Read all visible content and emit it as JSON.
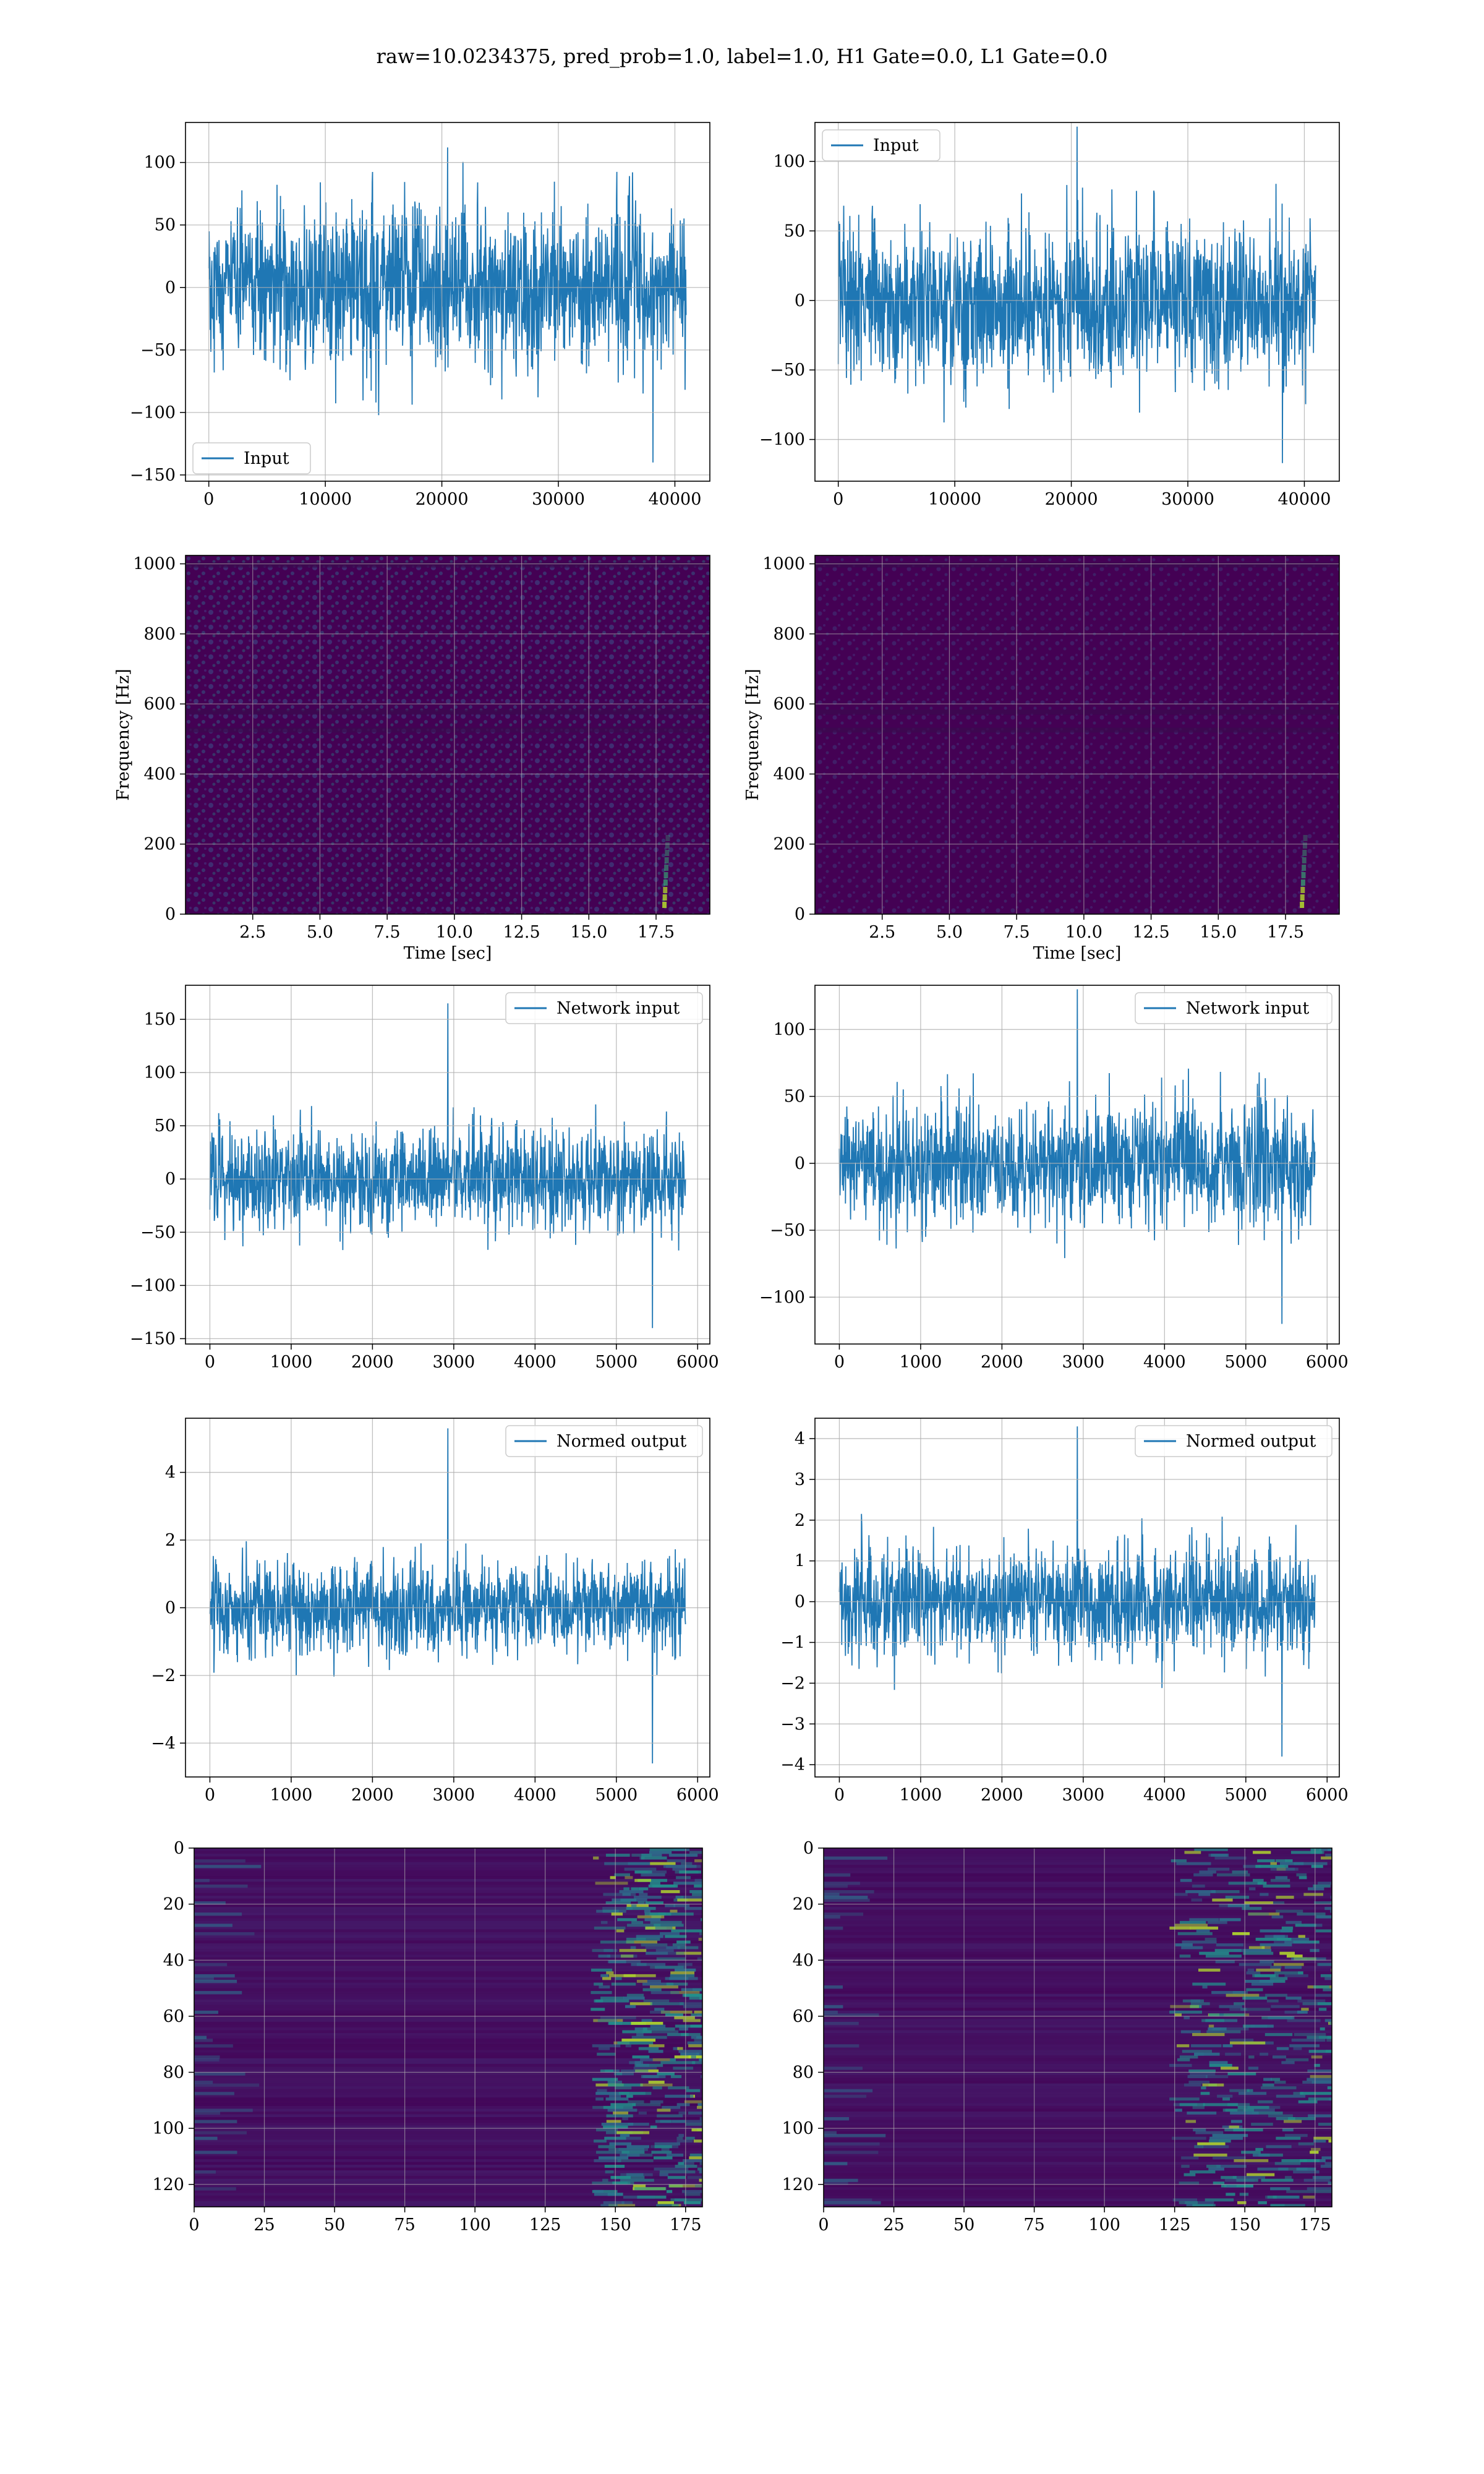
{
  "title": "raw=10.0234375, pred_prob=1.0, label=1.0, H1 Gate=0.0, L1 Gate=0.0",
  "colors": {
    "line": "#1f77b4",
    "grid": "#b0b0b0",
    "viridis_low": "#440154",
    "viridis_mid": "#21918c",
    "viridis_high": "#fde725"
  },
  "chart_data": [
    {
      "id": "input-h1",
      "type": "line",
      "legend": "Input",
      "legend_loc": "lower-left",
      "xlim": [
        -2000,
        43000
      ],
      "ylim": [
        -155,
        132
      ],
      "xticks": [
        0,
        10000,
        20000,
        30000,
        40000
      ],
      "yticks": [
        -150,
        -100,
        -50,
        0,
        50,
        100
      ],
      "x_range": [
        0,
        40960
      ],
      "typical_amplitude": 75,
      "peak_max": 112,
      "peak_min": -140,
      "grid": true
    },
    {
      "id": "input-l1",
      "type": "line",
      "legend": "Input",
      "legend_loc": "upper-left",
      "xlim": [
        -2000,
        43000
      ],
      "ylim": [
        -130,
        128
      ],
      "xticks": [
        0,
        10000,
        20000,
        30000,
        40000
      ],
      "yticks": [
        -100,
        -50,
        0,
        50,
        100
      ],
      "x_range": [
        0,
        40960
      ],
      "typical_amplitude": 65,
      "peak_max": 125,
      "peak_min": -117,
      "grid": true
    },
    {
      "id": "spec-h1",
      "type": "heatmap",
      "xlabel": "Time [sec]",
      "ylabel": "Frequency [Hz]",
      "xlim": [
        0,
        19.5
      ],
      "ylim": [
        0,
        1024
      ],
      "xticks": [
        2.5,
        5.0,
        7.5,
        10.0,
        12.5,
        15.0,
        17.5
      ],
      "yticks": [
        0,
        200,
        400,
        600,
        800,
        1000
      ],
      "colormap": "viridis",
      "signal_time": 17.8,
      "grid": true
    },
    {
      "id": "spec-l1",
      "type": "heatmap",
      "xlabel": "Time [sec]",
      "ylabel": "Frequency [Hz]",
      "xlim": [
        0,
        19.5
      ],
      "ylim": [
        0,
        1024
      ],
      "xticks": [
        2.5,
        5.0,
        7.5,
        10.0,
        12.5,
        15.0,
        17.5
      ],
      "yticks": [
        0,
        200,
        400,
        600,
        800,
        1000
      ],
      "colormap": "viridis",
      "signal_time": 18.1,
      "grid": true
    },
    {
      "id": "net-h1",
      "type": "line",
      "legend": "Network input",
      "legend_loc": "upper-right",
      "xlim": [
        -300,
        6150
      ],
      "ylim": [
        -155,
        182
      ],
      "xticks": [
        0,
        1000,
        2000,
        3000,
        4000,
        5000,
        6000
      ],
      "yticks": [
        -150,
        -100,
        -50,
        0,
        50,
        100,
        150
      ],
      "x_range": [
        0,
        5850
      ],
      "typical_amplitude": 55,
      "peak_max": 165,
      "peak_min": -140,
      "grid": true
    },
    {
      "id": "net-l1",
      "type": "line",
      "legend": "Network input",
      "legend_loc": "upper-right",
      "xlim": [
        -300,
        6150
      ],
      "ylim": [
        -135,
        133
      ],
      "xticks": [
        0,
        1000,
        2000,
        3000,
        4000,
        5000,
        6000
      ],
      "yticks": [
        -100,
        -50,
        0,
        50,
        100
      ],
      "x_range": [
        0,
        5850
      ],
      "typical_amplitude": 55,
      "peak_max": 130,
      "peak_min": -120,
      "grid": true
    },
    {
      "id": "norm-h1",
      "type": "line",
      "legend": "Normed output",
      "legend_loc": "upper-right",
      "xlim": [
        -300,
        6150
      ],
      "ylim": [
        -5.0,
        5.6
      ],
      "xticks": [
        0,
        1000,
        2000,
        3000,
        4000,
        5000,
        6000
      ],
      "yticks": [
        -4,
        -2,
        0,
        2,
        4
      ],
      "x_range": [
        0,
        5850
      ],
      "typical_amplitude": 1.7,
      "peak_max": 5.3,
      "peak_min": -4.6,
      "grid": true
    },
    {
      "id": "norm-l1",
      "type": "line",
      "legend": "Normed output",
      "legend_loc": "upper-right",
      "xlim": [
        -300,
        6150
      ],
      "ylim": [
        -4.3,
        4.5
      ],
      "xticks": [
        0,
        1000,
        2000,
        3000,
        4000,
        5000,
        6000
      ],
      "yticks": [
        -4,
        -3,
        -2,
        -1,
        0,
        1,
        2,
        3,
        4
      ],
      "x_range": [
        0,
        5850
      ],
      "typical_amplitude": 1.6,
      "peak_max": 4.3,
      "peak_min": -3.8,
      "grid": true
    },
    {
      "id": "feat-h1",
      "type": "heatmap",
      "xlim": [
        0,
        181
      ],
      "ylim": [
        128,
        0
      ],
      "xticks": [
        0,
        25,
        50,
        75,
        100,
        125,
        150,
        175
      ],
      "yticks": [
        0,
        20,
        40,
        60,
        80,
        100,
        120
      ],
      "colormap": "viridis",
      "grid": true
    },
    {
      "id": "feat-l1",
      "type": "heatmap",
      "xlim": [
        0,
        181
      ],
      "ylim": [
        128,
        0
      ],
      "xticks": [
        0,
        25,
        50,
        75,
        100,
        125,
        150,
        175
      ],
      "yticks": [
        0,
        20,
        40,
        60,
        80,
        100,
        120
      ],
      "colormap": "viridis",
      "grid": true
    }
  ]
}
